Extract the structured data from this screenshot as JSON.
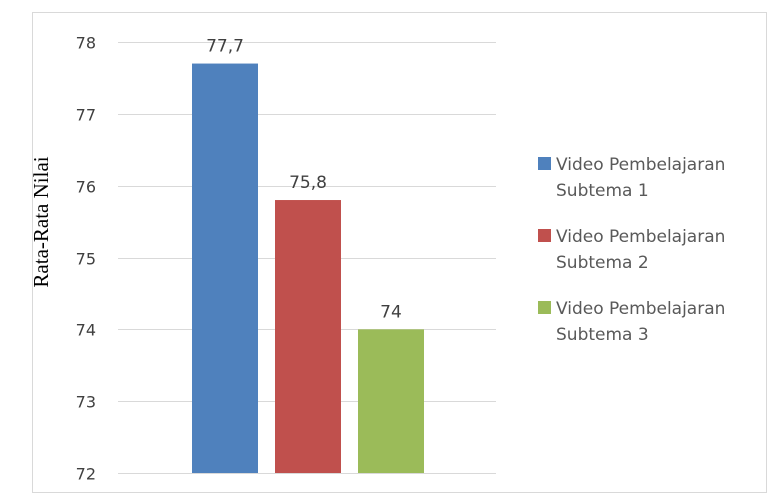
{
  "chart_data": {
    "type": "bar",
    "title": "",
    "xlabel": "",
    "ylabel": "Rata-Rata Nilai",
    "ylim": [
      72,
      78
    ],
    "yticks": [
      72,
      73,
      74,
      75,
      76,
      77,
      78
    ],
    "ytick_labels": [
      "72",
      "73",
      "74",
      "75",
      "76",
      "77",
      "78"
    ],
    "grid": true,
    "legend_position": "right",
    "series": [
      {
        "name": "Video Pembelajaran Subtema 1",
        "legend_lines": [
          "Video Pembelajaran",
          "Subtema 1"
        ],
        "value": 77.7,
        "value_label": "77,7",
        "color": "#4F81BD"
      },
      {
        "name": "Video Pembelajaran Subtema 2",
        "legend_lines": [
          "Video Pembelajaran",
          "Subtema 2"
        ],
        "value": 75.8,
        "value_label": "75,8",
        "color": "#C0504D"
      },
      {
        "name": "Video Pembelajaran Subtema 3",
        "legend_lines": [
          "Video Pembelajaran",
          "Subtema 3"
        ],
        "value": 74,
        "value_label": "74",
        "color": "#9BBB59"
      }
    ]
  }
}
